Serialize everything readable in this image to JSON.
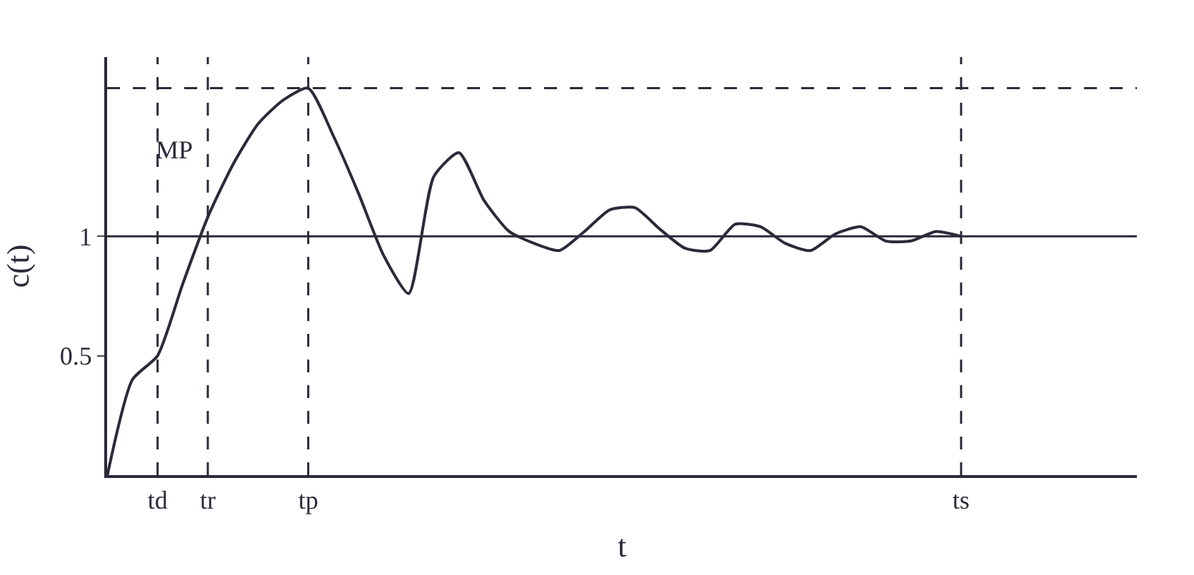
{
  "chart_data": {
    "type": "line",
    "xlabel": "t",
    "ylabel": "c(t)",
    "categories": [
      null,
      null,
      "td",
      null,
      "tr",
      null,
      null,
      null,
      "tp",
      null,
      null,
      null,
      null,
      null,
      null,
      null,
      null,
      null,
      null,
      null,
      null,
      null,
      null,
      null,
      null,
      null,
      null,
      null,
      null,
      null,
      null,
      null,
      null,
      null,
      "ts",
      null,
      null,
      null,
      null,
      null,
      null,
      null
    ],
    "series": [
      {
        "color": "#2a2a3a",
        "values": [
          0,
          0.4,
          0.5,
          0.8,
          1.08,
          1.3,
          1.47,
          1.57,
          1.62,
          1.42,
          1.18,
          0.92,
          0.76,
          1.25,
          1.35,
          1.15,
          1.02,
          0.97,
          0.94,
          1.02,
          1.11,
          1.12,
          1.03,
          0.95,
          0.94,
          1.05,
          1.04,
          0.97,
          0.94,
          1.01,
          1.04,
          0.98,
          0.98,
          1.02,
          1.0,
          null,
          null,
          null,
          null,
          null,
          null,
          null
        ]
      }
    ],
    "ylim": [
      0,
      1.75
    ],
    "yticks": [
      0.5,
      1
    ],
    "ref_lines": [
      {
        "axis": "y",
        "value": 1,
        "line_style": "solid",
        "color": "#2a2a3a"
      },
      {
        "axis": "y",
        "value": 1.62,
        "line_style": "dashed",
        "color": "#2a2a3a"
      },
      {
        "axis": "x",
        "value": "td",
        "line_style": "dashed",
        "color": "#2a2a3a"
      },
      {
        "axis": "x",
        "value": "tr",
        "line_style": "dashed",
        "color": "#2a2a3a"
      },
      {
        "axis": "x",
        "value": "tp",
        "line_style": "dashed",
        "color": "#2a2a3a"
      },
      {
        "axis": "x",
        "value": "ts",
        "line_style": "dashed",
        "color": "#2a2a3a"
      }
    ],
    "annotations": [
      "MP"
    ],
    "legend": false,
    "marker": "none",
    "line_style": "solid"
  }
}
